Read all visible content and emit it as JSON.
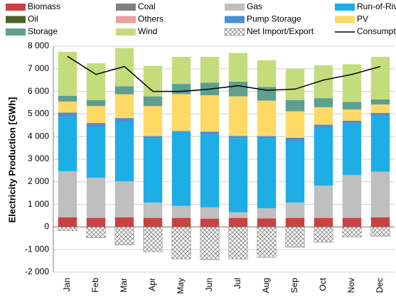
{
  "chart_data": {
    "type": "bar",
    "stacked": true,
    "ylabel": "Electricity Production [GWh]",
    "categories": [
      "Jan",
      "Feb",
      "Mar",
      "Apr",
      "May",
      "Jun",
      "Jul",
      "Aug",
      "Sep",
      "Oct",
      "Nov",
      "Dec"
    ],
    "ylim": [
      -2000,
      8000
    ],
    "yticks": [
      {
        "value": -2000,
        "label": "-2 000"
      },
      {
        "value": -1000,
        "label": "-1 000"
      },
      0,
      {
        "value": 1000,
        "label": "1 000"
      },
      {
        "value": 2000,
        "label": "2 000"
      },
      {
        "value": 3000,
        "label": "3 000"
      },
      {
        "value": 4000,
        "label": "4 000"
      },
      {
        "value": 5000,
        "label": "5 000"
      },
      {
        "value": 6000,
        "label": "6 000"
      },
      {
        "value": 7000,
        "label": "7 000"
      },
      {
        "value": 8000,
        "label": "8 000"
      }
    ],
    "grid": true,
    "series": [
      {
        "name": "Biomass",
        "color": "#c9423f",
        "values": [
          430,
          400,
          430,
          400,
          400,
          370,
          400,
          380,
          400,
          400,
          400,
          430
        ]
      },
      {
        "name": "Coal",
        "color": "#7f7f7f",
        "values": [
          0,
          0,
          0,
          0,
          0,
          0,
          0,
          0,
          0,
          0,
          0,
          0
        ]
      },
      {
        "name": "Gas",
        "color": "#bfbfbf",
        "values": [
          2040,
          1780,
          1590,
          680,
          530,
          500,
          250,
          450,
          680,
          1430,
          1900,
          2020
        ]
      },
      {
        "name": "Run-of-River",
        "color": "#1eaee6",
        "values": [
          2400,
          2250,
          2630,
          2850,
          3270,
          3220,
          3270,
          3100,
          2720,
          2570,
          2300,
          2450
        ]
      },
      {
        "name": "Oil",
        "color": "#4f6228",
        "values": [
          0,
          0,
          0,
          0,
          0,
          0,
          0,
          0,
          0,
          0,
          0,
          0
        ]
      },
      {
        "name": "Others",
        "color": "#e6a1a0",
        "values": [
          0,
          0,
          0,
          0,
          0,
          0,
          0,
          0,
          0,
          0,
          0,
          0
        ]
      },
      {
        "name": "Pump Storage",
        "color": "#4a8fd2",
        "values": [
          190,
          170,
          170,
          90,
          50,
          130,
          110,
          90,
          150,
          130,
          100,
          150
        ]
      },
      {
        "name": "PV",
        "color": "#ffd966",
        "values": [
          490,
          750,
          1050,
          1330,
          1630,
          1610,
          1750,
          1570,
          1170,
          770,
          500,
          370
        ]
      },
      {
        "name": "Storage",
        "color": "#5e9f8f",
        "values": [
          250,
          270,
          360,
          430,
          450,
          550,
          650,
          610,
          500,
          400,
          330,
          230
        ]
      },
      {
        "name": "Wind",
        "color": "#c5dc7c",
        "values": [
          1950,
          1630,
          1690,
          1350,
          1200,
          1150,
          1270,
          1180,
          1380,
          1450,
          1670,
          1880
        ]
      },
      {
        "name": "Net Import/Export",
        "color": "#7f7f7f",
        "pattern": "crosshatch",
        "values": [
          -170,
          -480,
          -800,
          -1100,
          -1420,
          -1450,
          -1420,
          -1350,
          -900,
          -680,
          -450,
          -420
        ]
      },
      {
        "name": "Consumption",
        "color": "#000000",
        "type": "line",
        "values": [
          7550,
          6750,
          7100,
          6000,
          6000,
          6100,
          6250,
          6050,
          6100,
          6500,
          6750,
          7100
        ]
      }
    ]
  }
}
